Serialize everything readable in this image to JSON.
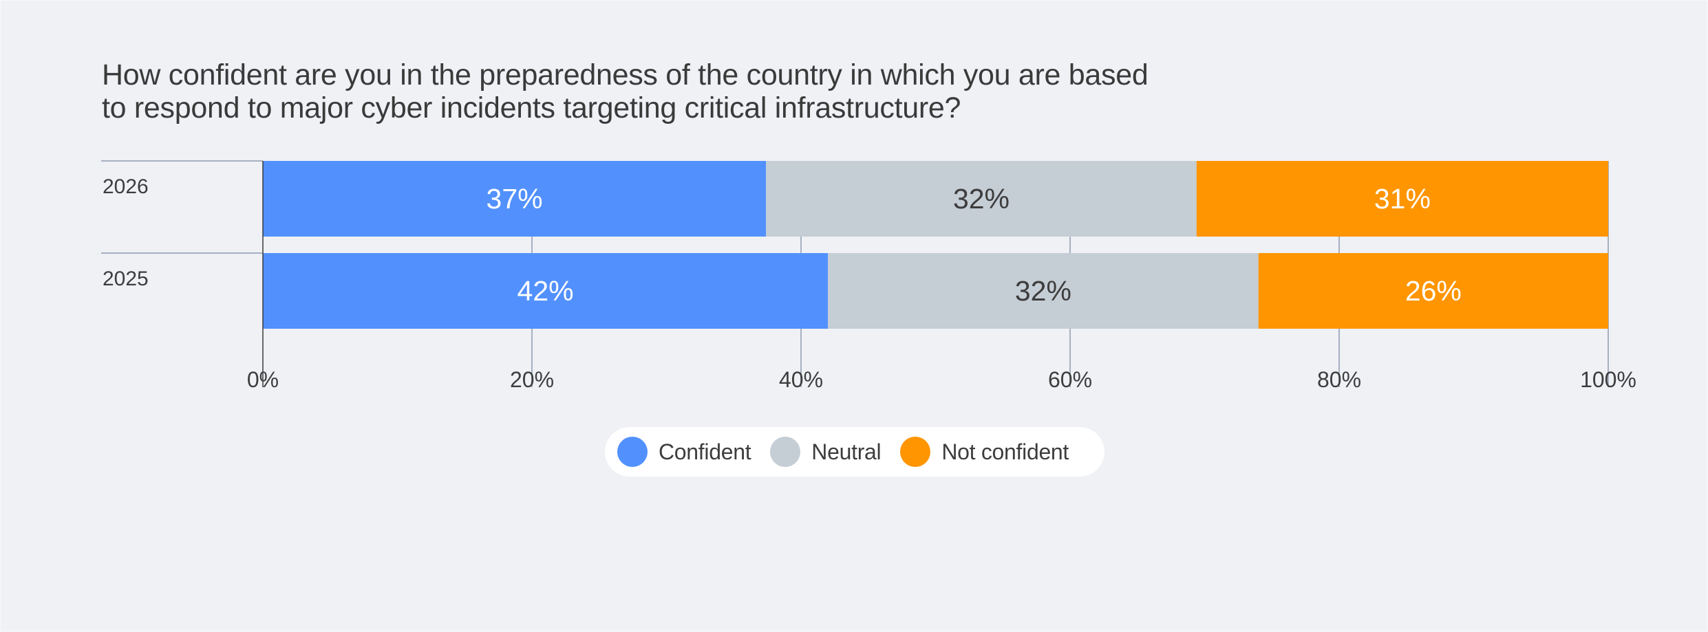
{
  "chart_data": {
    "type": "bar",
    "orientation": "horizontal",
    "stacked": true,
    "title": "How confident are you in the preparedness of the country in which you are based to respond to major cyber incidents targeting critical infrastructure?",
    "title_lines": [
      "How confident are you in the preparedness of the country in which you are based",
      "to respond to major cyber incidents targeting critical infrastructure?"
    ],
    "categories": [
      "2026",
      "2025"
    ],
    "series": [
      {
        "name": "Confident",
        "color": "#5291fd",
        "label_color": "#ffffff",
        "values": [
          37.4,
          42.0
        ],
        "labels": [
          "37%",
          "42%"
        ]
      },
      {
        "name": "Neutral",
        "color": "#c5cdd5",
        "label_color": "#3d3d3d",
        "values": [
          32.0,
          32.0
        ],
        "labels": [
          "32%",
          "32%"
        ]
      },
      {
        "name": "Not confident",
        "color": "#ff9500",
        "label_color": "#ffffff",
        "values": [
          30.6,
          26.0
        ],
        "labels": [
          "31%",
          "26%"
        ]
      }
    ],
    "xlabel": "",
    "ylabel": "",
    "xlim": [
      0,
      100
    ],
    "xticks": [
      0,
      20,
      40,
      60,
      80,
      100
    ],
    "xtick_labels": [
      "0%",
      "20%",
      "40%",
      "60%",
      "80%",
      "100%"
    ],
    "grid": true,
    "legend": {
      "placement": "bottom-center",
      "entries": [
        "Confident",
        "Neutral",
        "Not confident"
      ]
    }
  }
}
